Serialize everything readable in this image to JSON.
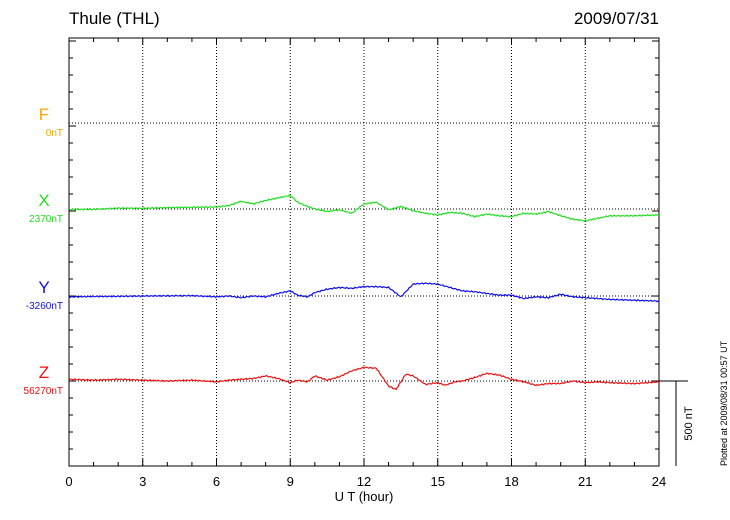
{
  "header": {
    "station": "Thule (THL)",
    "date": "2009/07/31"
  },
  "footer": {
    "credit": "Plotted at 2009/08/31 00:57 UT"
  },
  "chart_data": {
    "type": "line",
    "title": "Thule (THL)",
    "date": "2009/07/31",
    "xlabel": "U T (hour)",
    "xlim": [
      0,
      24
    ],
    "x_ticks": [
      "0",
      "3",
      "6",
      "9",
      "12",
      "15",
      "18",
      "21",
      "24"
    ],
    "scale_bar_label": "500 nT",
    "scale_bar_nT": 500,
    "grid": true,
    "series": [
      {
        "name": "F",
        "baseline_label": "0nT",
        "color": "#f5a800",
        "baseline_nT": 0,
        "x": [],
        "values": []
      },
      {
        "name": "X",
        "baseline_label": "2370nT",
        "color": "#22dd22",
        "baseline_nT": 2370,
        "x": [
          0,
          1,
          2,
          3,
          4,
          5,
          6,
          6.5,
          7,
          7.5,
          8,
          8.5,
          9,
          9.3,
          9.7,
          10,
          10.5,
          11,
          11.5,
          12,
          12.5,
          13,
          13.5,
          14,
          14.5,
          15,
          15.5,
          16,
          16.5,
          17,
          17.5,
          18,
          18.5,
          19,
          19.5,
          20,
          20.5,
          21,
          21.5,
          22,
          23,
          24
        ],
        "values": [
          -3,
          -2,
          5,
          4,
          8,
          10,
          12,
          20,
          45,
          30,
          50,
          65,
          80,
          40,
          15,
          0,
          -15,
          -5,
          -25,
          30,
          40,
          -5,
          15,
          -10,
          -25,
          -35,
          -20,
          -25,
          -45,
          -30,
          -40,
          -45,
          -25,
          -30,
          -15,
          -40,
          -60,
          -70,
          -55,
          -40,
          -40,
          -35
        ]
      },
      {
        "name": "Y",
        "baseline_label": "-3260nT",
        "color": "#1010ee",
        "baseline_nT": -3260,
        "x": [
          0,
          1,
          2,
          3,
          4,
          5,
          6,
          6.5,
          7,
          7.5,
          8,
          8.5,
          9,
          9.3,
          9.7,
          10,
          10.5,
          11,
          11.5,
          12,
          12.5,
          13,
          13.5,
          14,
          14.5,
          15,
          15.5,
          16,
          16.5,
          17,
          17.5,
          18,
          18.5,
          19,
          19.5,
          20,
          20.5,
          21,
          21.5,
          22,
          23,
          24
        ],
        "values": [
          -5,
          -3,
          -2,
          0,
          1,
          2,
          -5,
          0,
          -10,
          0,
          -5,
          15,
          30,
          5,
          -5,
          20,
          40,
          50,
          45,
          55,
          55,
          50,
          -5,
          70,
          75,
          70,
          50,
          30,
          25,
          15,
          5,
          5,
          -15,
          -5,
          -10,
          10,
          -5,
          -10,
          -15,
          -20,
          -25,
          -30
        ]
      },
      {
        "name": "Z",
        "baseline_label": "56270nT",
        "color": "#ee1111",
        "baseline_nT": 56270,
        "x": [
          0,
          1,
          2,
          3,
          4,
          5,
          6,
          6.5,
          7,
          7.5,
          8,
          8.5,
          9,
          9.3,
          9.7,
          10,
          10.5,
          11,
          11.5,
          12,
          12.5,
          13,
          13.3,
          13.7,
          14,
          14.5,
          15,
          15.3,
          15.7,
          16,
          16.5,
          17,
          17.5,
          18,
          18.5,
          19,
          19.5,
          20,
          20.5,
          21,
          21.5,
          22,
          23,
          24
        ],
        "values": [
          10,
          5,
          10,
          5,
          0,
          5,
          -5,
          5,
          10,
          15,
          30,
          15,
          -10,
          5,
          -5,
          30,
          5,
          25,
          60,
          80,
          75,
          -30,
          -50,
          40,
          30,
          -20,
          -10,
          -25,
          -5,
          0,
          20,
          45,
          35,
          10,
          -5,
          -25,
          -15,
          -15,
          0,
          -10,
          -5,
          -10,
          -15,
          -5
        ]
      }
    ]
  }
}
